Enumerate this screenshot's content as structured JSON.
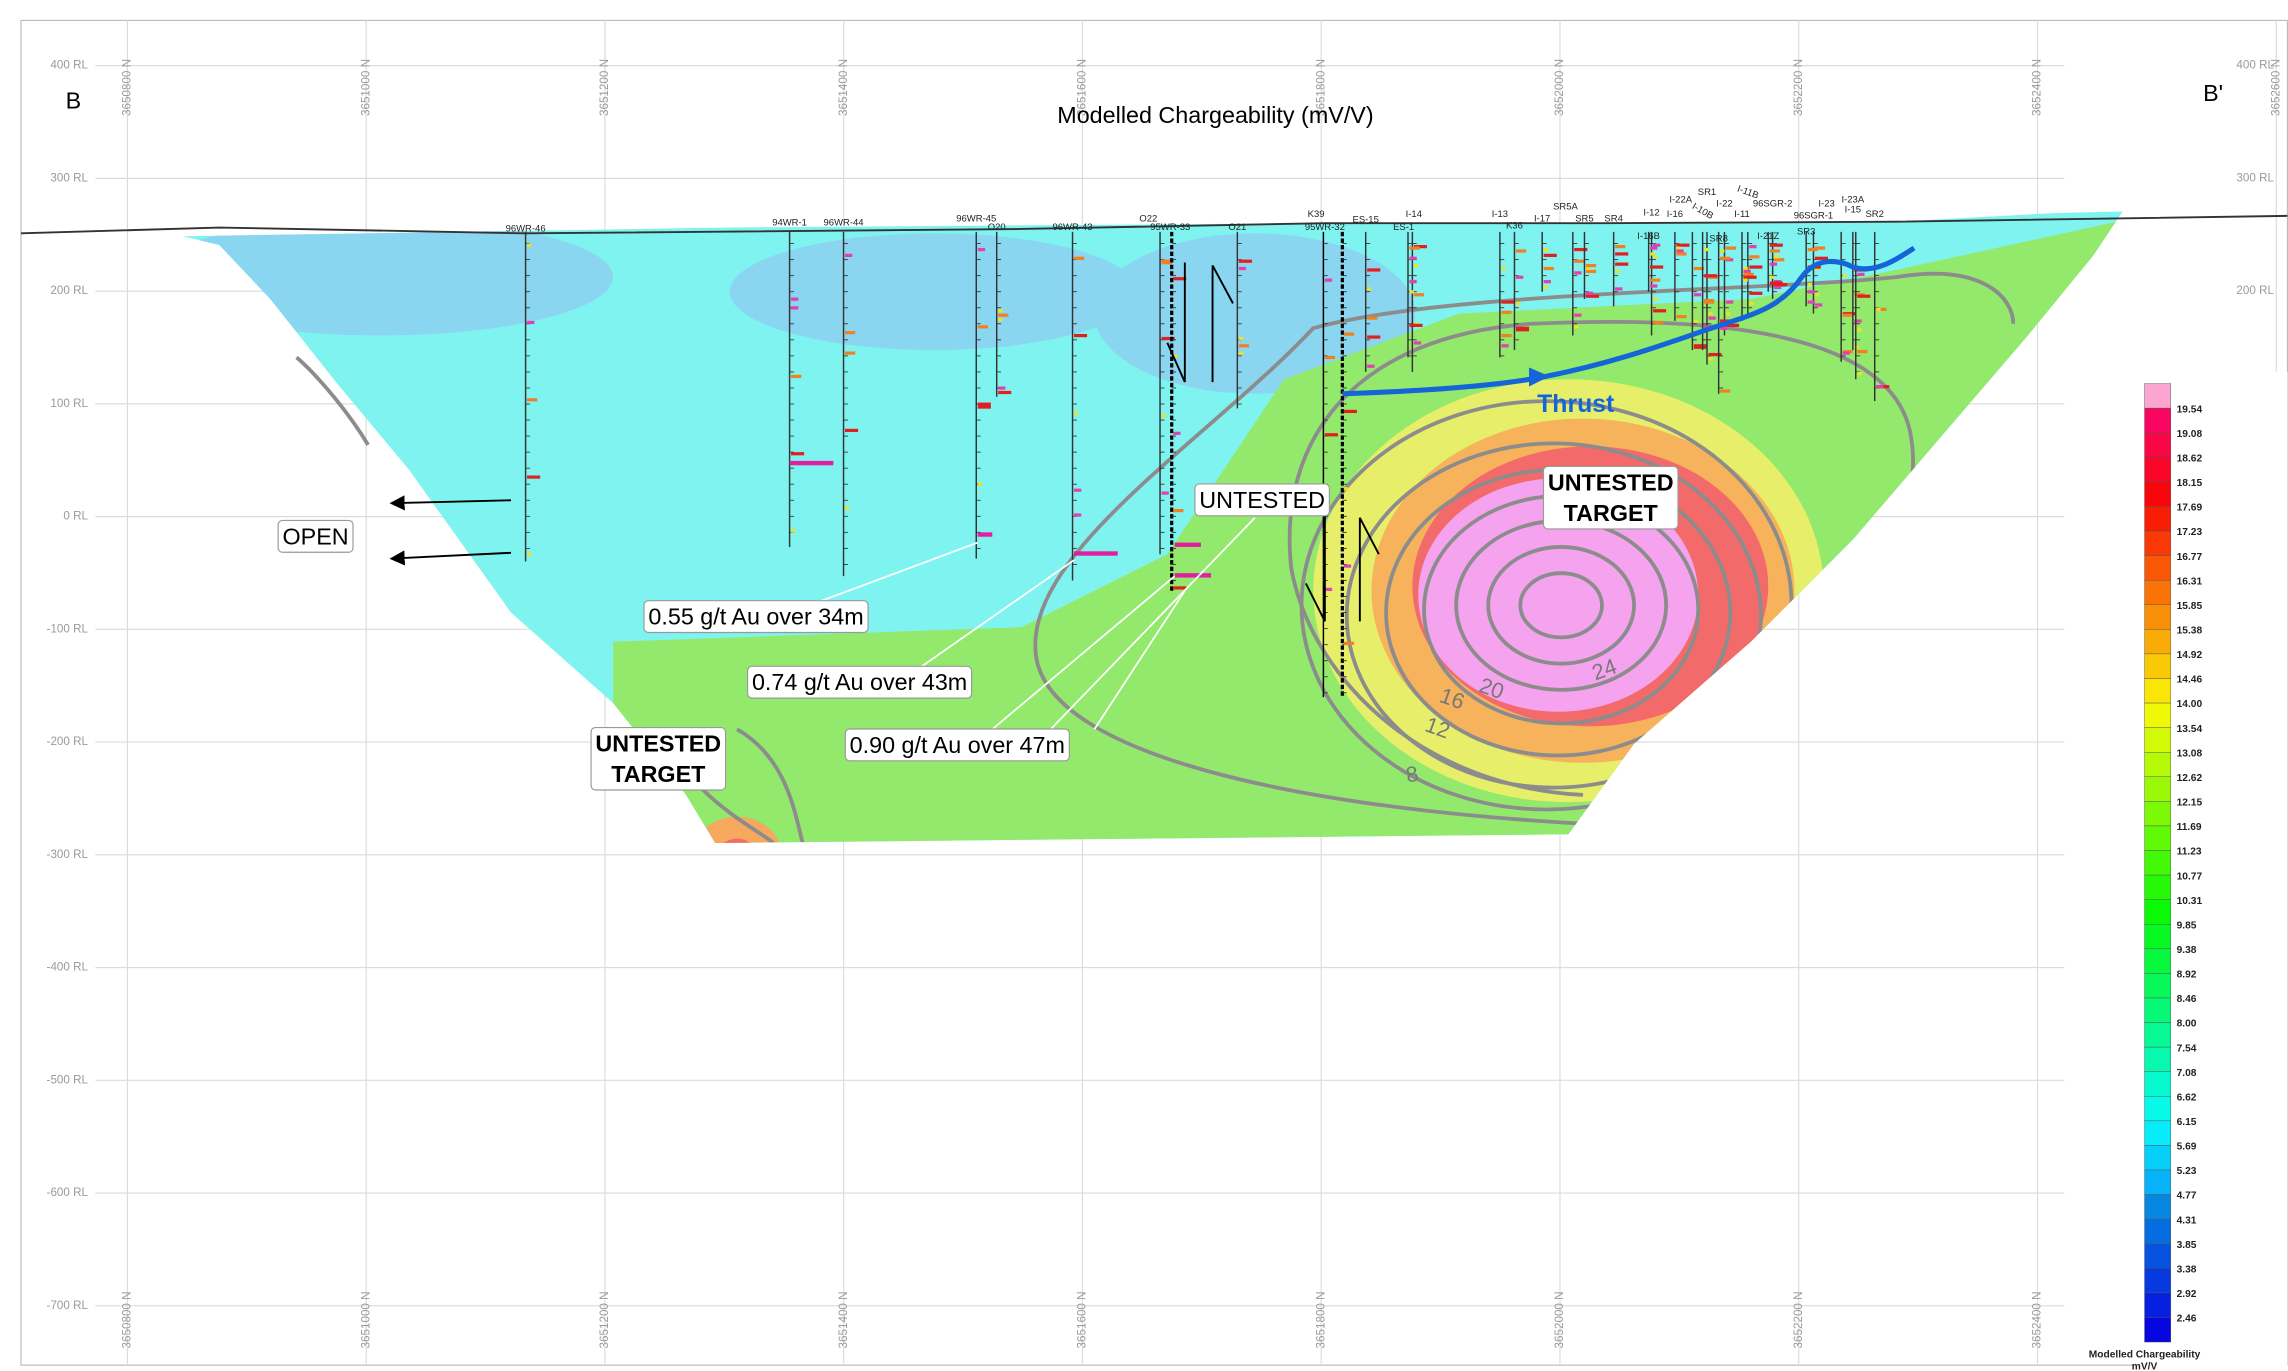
{
  "header": {
    "title": "Modelled Chargeability (mV/V)",
    "left_end": "B",
    "right_end": "B'"
  },
  "axes": {
    "elevation_labels": [
      "400 RL",
      "300 RL",
      "200 RL",
      "100 RL",
      "0 RL",
      "-100 RL",
      "-200 RL",
      "-300 RL",
      "-400 RL",
      "-500 RL",
      "-600 RL",
      "-700 RL"
    ],
    "northing_labels": [
      "3650800 N",
      "3651000 N",
      "3651200 N",
      "3651400 N",
      "3651600 N",
      "3651800 N",
      "3652000 N",
      "3652200 N",
      "3652400 N",
      "3652600 N"
    ]
  },
  "drillholes": [
    "96WR-46",
    "94WR-1",
    "96WR-44",
    "96WR-45",
    "O20",
    "96WR-43",
    "O22",
    "95WR-33",
    "O21",
    "K39",
    "95WR-32",
    "ES-15",
    "I-14",
    "ES-1",
    "I-13",
    "K36",
    "I-17",
    "SR5A",
    "SR5",
    "SR4",
    "I-12",
    "I-16B",
    "I-16",
    "I-22A",
    "SR1",
    "I-22",
    "I-10B",
    "I-11B",
    "I-11",
    "96SGR-2",
    "SR8",
    "I-21Z",
    "96SGR-1",
    "SR3",
    "I-23",
    "I-23A",
    "I-15",
    "SR2"
  ],
  "annotations": {
    "open": "OPEN",
    "untested": "UNTESTED",
    "untested_target_main": [
      "UNTESTED",
      "TARGET"
    ],
    "untested_target_lower": [
      "UNTESTED",
      "TARGET"
    ],
    "intercepts": [
      "0.55 g/t Au over 34m",
      "0.74 g/t Au over 43m",
      "0.90 g/t Au over 47m"
    ],
    "thrust": "Thrust"
  },
  "contour_labels": [
    "8",
    "12",
    "16",
    "20",
    "24"
  ],
  "legend": {
    "title": "Modelled Chargeability",
    "unit": "mV/V",
    "values": [
      "19.54",
      "19.08",
      "18.62",
      "18.15",
      "17.69",
      "17.23",
      "16.77",
      "16.31",
      "15.85",
      "15.38",
      "14.92",
      "14.46",
      "14.00",
      "13.54",
      "13.08",
      "12.62",
      "12.15",
      "11.69",
      "11.23",
      "10.77",
      "10.31",
      "9.85",
      "9.38",
      "8.92",
      "8.46",
      "8.00",
      "7.54",
      "7.08",
      "6.62",
      "6.15",
      "5.69",
      "5.23",
      "4.77",
      "4.31",
      "3.85",
      "3.38",
      "2.92",
      "2.46"
    ]
  }
}
